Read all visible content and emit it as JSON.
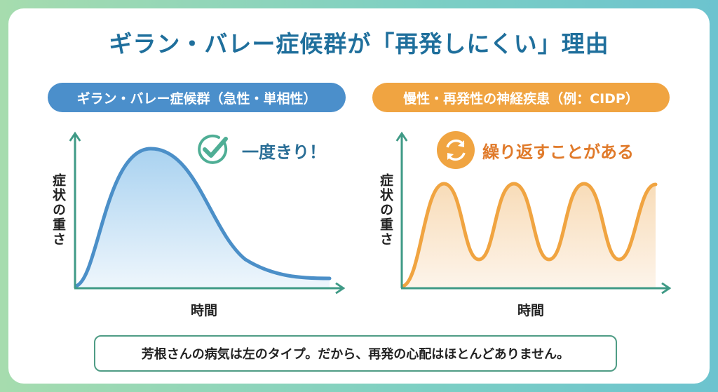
{
  "title": "ギラン・バレー症候群が「再発しにくい」理由",
  "left": {
    "pill": "ギラン・バレー症候群（急性・単相性）",
    "badge": "一度きり！",
    "badge_icon": "check-circle-icon",
    "y_label": "症状の重さ",
    "x_label": "時間",
    "color": "#4b8fcb"
  },
  "right": {
    "pill": "慢性・再発性の神経疾患（例：CIDP）",
    "badge": "繰り返すことがある",
    "badge_icon": "refresh-icon",
    "y_label": "症状の重さ",
    "x_label": "時間",
    "color": "#f0a441"
  },
  "note": "芳根さんの病気は左のタイプ。だから、再発の心配はほとんどありません。",
  "colors": {
    "axis": "#3f9a86",
    "title": "#1f6f9c"
  }
}
